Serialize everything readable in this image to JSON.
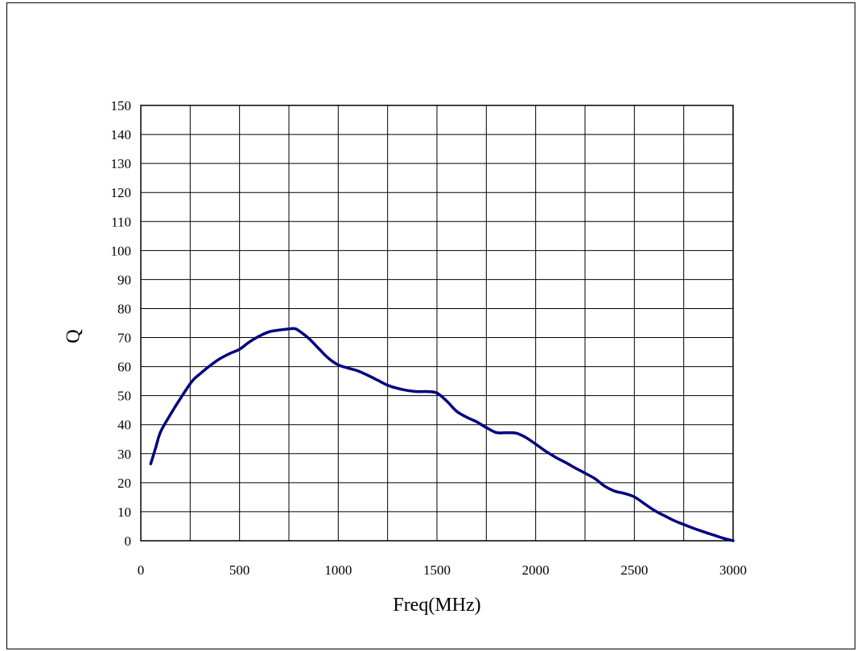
{
  "chart_data": {
    "type": "line",
    "title": "",
    "xlabel": "Freq(MHz)",
    "ylabel": "Q",
    "xlim": [
      0,
      3000
    ],
    "ylim": [
      0,
      150
    ],
    "xticks": [
      0,
      500,
      1000,
      1500,
      2000,
      2500,
      3000
    ],
    "yticks": [
      0,
      10,
      20,
      30,
      40,
      50,
      60,
      70,
      80,
      90,
      100,
      110,
      120,
      130,
      140,
      150
    ],
    "x_gridlines": [
      0,
      250,
      500,
      750,
      1000,
      1250,
      1500,
      1750,
      2000,
      2250,
      2500,
      2750,
      3000
    ],
    "grid": true,
    "line_color": "#00007f",
    "series": [
      {
        "x": [
          50,
          75,
          100,
          150,
          200,
          260,
          300,
          350,
          400,
          450,
          500,
          550,
          600,
          650,
          700,
          750,
          780,
          800,
          850,
          900,
          950,
          1000,
          1050,
          1100,
          1150,
          1200,
          1250,
          1300,
          1350,
          1400,
          1450,
          1500,
          1550,
          1600,
          1650,
          1700,
          1750,
          1800,
          1850,
          1900,
          1950,
          2000,
          2050,
          2100,
          2150,
          2200,
          2250,
          2300,
          2350,
          2400,
          2450,
          2500,
          2550,
          2600,
          2650,
          2700,
          2750,
          2800,
          2850,
          2900,
          2950,
          3000
        ],
        "y": [
          26.5,
          32,
          37.5,
          43.5,
          49,
          55,
          57.5,
          60.3,
          62.7,
          64.5,
          66,
          68.5,
          70.5,
          72,
          72.6,
          73,
          73.1,
          72.4,
          69.8,
          66.3,
          62.9,
          60.6,
          59.5,
          58.5,
          57,
          55.3,
          53.6,
          52.5,
          51.8,
          51.4,
          51.4,
          50.9,
          48.1,
          44.6,
          42.6,
          41,
          39,
          37.3,
          37.2,
          37.1,
          35.6,
          33.3,
          30.9,
          28.8,
          27,
          25.1,
          23.3,
          21.4,
          18.8,
          17.1,
          16.3,
          15.1,
          12.8,
          10.5,
          8.7,
          7,
          5.6,
          4.3,
          3.1,
          2,
          0.9,
          0
        ]
      }
    ]
  }
}
